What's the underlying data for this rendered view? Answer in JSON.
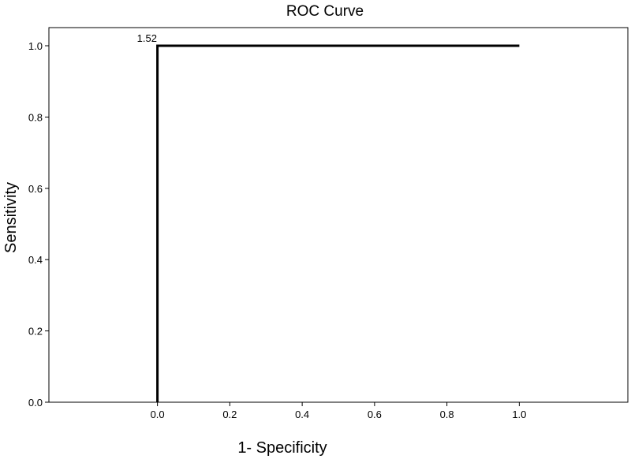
{
  "chart_data": {
    "type": "line",
    "title": "ROC Curve",
    "xlabel": "1- Specificity",
    "ylabel": "Sensitivity",
    "xlim": [
      -0.3,
      1.3
    ],
    "ylim": [
      0,
      1.0
    ],
    "x_ticks": [
      "0.0",
      "0.2",
      "0.4",
      "0.6",
      "0.8",
      "1.0"
    ],
    "y_ticks": [
      "0.0",
      "0.2",
      "0.4",
      "0.6",
      "0.8",
      "1.0"
    ],
    "series": [
      {
        "x": [
          0.0,
          0.0,
          1.0
        ],
        "y": [
          0.0,
          1.0,
          1.0
        ]
      }
    ],
    "annotations": [
      {
        "text": "1.52",
        "x": 0.0,
        "y": 1.0
      }
    ],
    "grid": false,
    "legend": "none",
    "line_color": "#000000"
  }
}
